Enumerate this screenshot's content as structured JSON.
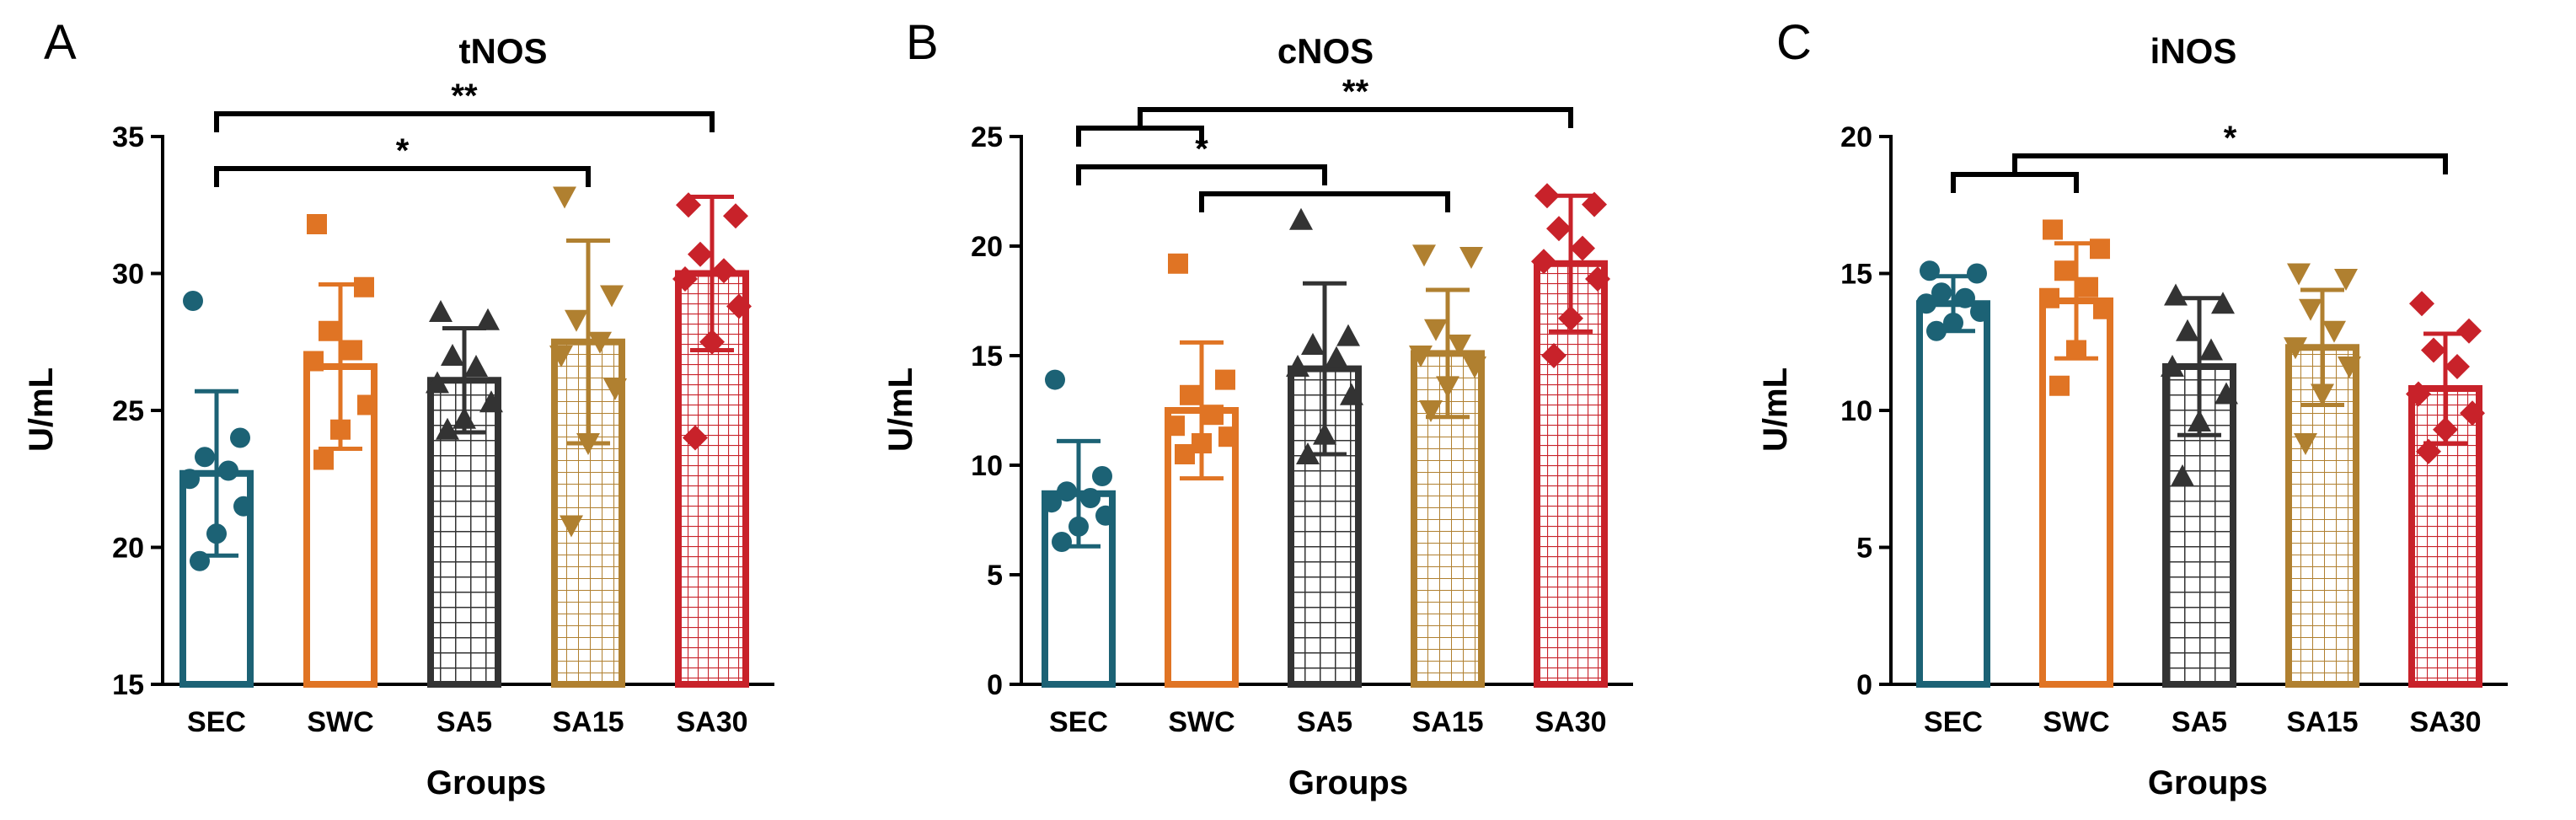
{
  "chart_data": [
    {
      "panel": "A",
      "title": "tNOS",
      "type": "bar",
      "ylabel": "U/mL",
      "xlabel": "Groups",
      "ylim": [
        15,
        35
      ],
      "yticks": [
        15,
        20,
        25,
        30,
        35
      ],
      "categories": [
        "SEC",
        "SWC",
        "SA5",
        "SA15",
        "SA30"
      ],
      "means": [
        22.7,
        26.6,
        26.1,
        27.5,
        30.0
      ],
      "sd": [
        3.0,
        3.0,
        1.9,
        3.7,
        2.8
      ],
      "points": [
        [
          29.0,
          24.0,
          23.3,
          22.8,
          22.5,
          21.5,
          20.5,
          19.5
        ],
        [
          31.8,
          29.5,
          27.9,
          27.2,
          26.8,
          25.2,
          24.3,
          23.2
        ],
        [
          28.6,
          28.3,
          27.0,
          26.6,
          26.0,
          25.3,
          24.7,
          24.3
        ],
        [
          32.8,
          29.2,
          28.3,
          27.5,
          27.0,
          25.8,
          23.8,
          20.8
        ],
        [
          32.5,
          32.1,
          30.7,
          30.1,
          29.8,
          28.8,
          27.5,
          24.0
        ]
      ],
      "significance": [
        {
          "label": "**",
          "groups": [
            "SEC",
            "SA30"
          ]
        },
        {
          "label": "*",
          "groups": [
            "SEC",
            "SA15"
          ]
        }
      ]
    },
    {
      "panel": "B",
      "title": "cNOS",
      "type": "bar",
      "ylabel": "U/mL",
      "xlabel": "Groups",
      "ylim": [
        0,
        25
      ],
      "yticks": [
        0,
        5,
        10,
        15,
        20,
        25
      ],
      "categories": [
        "SEC",
        "SWC",
        "SA5",
        "SA15",
        "SA30"
      ],
      "means": [
        8.7,
        12.5,
        14.4,
        15.1,
        19.2
      ],
      "sd": [
        2.4,
        3.1,
        3.9,
        2.9,
        3.1
      ],
      "points": [
        [
          13.9,
          9.5,
          8.8,
          8.5,
          8.3,
          7.7,
          7.2,
          6.5
        ],
        [
          19.2,
          13.9,
          13.2,
          12.3,
          11.8,
          11.3,
          11.0,
          10.5
        ],
        [
          21.2,
          15.9,
          15.5,
          14.9,
          14.5,
          13.2,
          11.4,
          10.5
        ],
        [
          19.6,
          19.5,
          16.2,
          15.5,
          15.0,
          14.5,
          13.6,
          12.5
        ],
        [
          22.3,
          21.9,
          20.8,
          19.9,
          19.3,
          18.5,
          16.7,
          15.0
        ]
      ],
      "significance": [
        {
          "label": "**",
          "groups": [
            "SEC|SWC",
            "SA30"
          ]
        },
        {
          "label": "*",
          "groups": [
            "SEC",
            "SA5"
          ]
        },
        {
          "label": "",
          "groups": [
            "SWC",
            "SA15"
          ]
        }
      ]
    },
    {
      "panel": "C",
      "title": "iNOS",
      "type": "bar",
      "ylabel": "U/mL",
      "xlabel": "Groups",
      "ylim": [
        0,
        20
      ],
      "yticks": [
        0,
        5,
        10,
        15,
        20
      ],
      "categories": [
        "SEC",
        "SWC",
        "SA5",
        "SA15",
        "SA30"
      ],
      "means": [
        13.9,
        14.0,
        11.6,
        12.3,
        10.8
      ],
      "sd": [
        1.0,
        2.1,
        2.5,
        2.1,
        2.0
      ],
      "points": [
        [
          15.1,
          15.0,
          14.3,
          14.1,
          13.9,
          13.6,
          13.2,
          12.9
        ],
        [
          16.6,
          15.9,
          15.1,
          14.5,
          14.1,
          13.7,
          12.2,
          10.9
        ],
        [
          14.2,
          13.9,
          12.9,
          12.2,
          11.6,
          10.6,
          9.6,
          7.6
        ],
        [
          15.0,
          14.8,
          13.7,
          12.9,
          12.3,
          11.6,
          10.6,
          8.8
        ],
        [
          13.9,
          12.9,
          12.2,
          11.6,
          10.6,
          9.9,
          9.3,
          8.5
        ]
      ],
      "significance": [
        {
          "label": "*",
          "groups": [
            "SEC|SWC",
            "SA30"
          ]
        }
      ]
    }
  ],
  "colors": {
    "SEC": "#1c6275",
    "SWC": "#e07424",
    "SA5": "#333333",
    "SA15": "#b08030",
    "SA30": "#c8222a"
  },
  "markers": {
    "SEC": "circle",
    "SWC": "square",
    "SA5": "triangle-up",
    "SA15": "triangle-down",
    "SA30": "diamond"
  }
}
